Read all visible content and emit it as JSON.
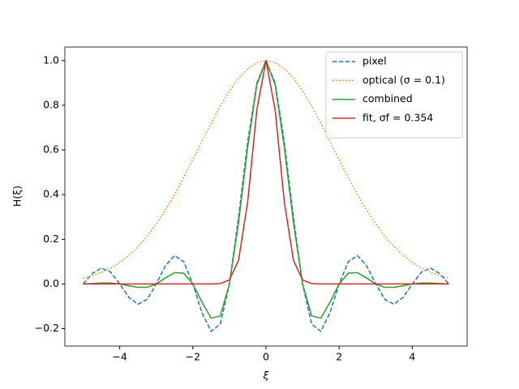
{
  "chart_data": {
    "type": "line",
    "xlabel": "ξ",
    "ylabel": "H(ξ)",
    "x": [
      -5,
      -4.75,
      -4.5,
      -4.25,
      -4,
      -3.75,
      -3.5,
      -3.25,
      -3,
      -2.75,
      -2.5,
      -2.25,
      -2,
      -1.75,
      -1.5,
      -1.25,
      -1,
      -0.75,
      -0.5,
      -0.25,
      0,
      0.25,
      0.5,
      0.75,
      1,
      1.25,
      1.5,
      1.75,
      2,
      2.25,
      2.5,
      2.75,
      3,
      3.25,
      3.5,
      3.75,
      4,
      4.25,
      4.5,
      4.75,
      5
    ],
    "series": [
      {
        "name": "pixel",
        "color": "#1f77b4",
        "linestyle": "dashed",
        "values": [
          0,
          0.047,
          0.071,
          0.053,
          0,
          -0.06,
          -0.091,
          -0.069,
          0,
          0.082,
          0.127,
          0.1,
          0,
          -0.129,
          -0.212,
          -0.18,
          0,
          0.3,
          0.637,
          0.9,
          1,
          0.9,
          0.637,
          0.3,
          0,
          -0.18,
          -0.212,
          -0.129,
          0,
          0.1,
          0.127,
          0.082,
          0,
          -0.069,
          -0.091,
          -0.06,
          0,
          0.053,
          0.071,
          0.047,
          0
        ]
      },
      {
        "name": "optical (σ =  0.1)",
        "color": "#ff7f0e",
        "linestyle": "dotted",
        "values": [
          0.026,
          0.037,
          0.052,
          0.071,
          0.097,
          0.128,
          0.167,
          0.214,
          0.269,
          0.331,
          0.401,
          0.477,
          0.557,
          0.639,
          0.72,
          0.796,
          0.864,
          0.921,
          0.964,
          0.991,
          1,
          0.991,
          0.964,
          0.921,
          0.864,
          0.796,
          0.72,
          0.639,
          0.557,
          0.477,
          0.401,
          0.331,
          0.269,
          0.214,
          0.167,
          0.128,
          0.097,
          0.071,
          0.052,
          0.037,
          0.026
        ]
      },
      {
        "name": "combined",
        "color": "#2ca02c",
        "linestyle": "solid",
        "values": [
          0,
          0.002,
          0.004,
          0.004,
          0,
          -0.008,
          -0.015,
          -0.015,
          0,
          0.027,
          0.051,
          0.048,
          0,
          -0.082,
          -0.153,
          -0.143,
          0,
          0.276,
          0.614,
          0.892,
          1,
          0.892,
          0.614,
          0.276,
          0,
          -0.143,
          -0.153,
          -0.082,
          0,
          0.048,
          0.051,
          0.027,
          0,
          -0.015,
          -0.015,
          -0.008,
          0,
          0.004,
          0.004,
          0.002,
          0
        ]
      },
      {
        "name": "fit, σf =  0.354",
        "color": "#d62728",
        "linestyle": "solid",
        "values": [
          0,
          0,
          0,
          0,
          0,
          0,
          0,
          0,
          0,
          0,
          0,
          0,
          0,
          0,
          0,
          0.002,
          0.018,
          0.106,
          0.369,
          0.779,
          1,
          0.779,
          0.369,
          0.106,
          0.018,
          0.002,
          0,
          0,
          0,
          0,
          0,
          0,
          0,
          0,
          0,
          0,
          0,
          0,
          0,
          0,
          0
        ]
      }
    ],
    "xlim": [
      -5.5,
      5.5
    ],
    "xticks": [
      {
        "value": -4,
        "label": "−4"
      },
      {
        "value": -2,
        "label": "−2"
      },
      {
        "value": 0,
        "label": "0"
      },
      {
        "value": 2,
        "label": "2"
      },
      {
        "value": 4,
        "label": "4"
      }
    ],
    "ylim": [
      -0.278,
      1.061
    ],
    "yticks": [
      {
        "value": -0.2,
        "label": "−0.2"
      },
      {
        "value": 0,
        "label": "0.0"
      },
      {
        "value": 0.2,
        "label": "0.2"
      },
      {
        "value": 0.4,
        "label": "0.4"
      },
      {
        "value": 0.6,
        "label": "0.6"
      },
      {
        "value": 0.8,
        "label": "0.8"
      },
      {
        "value": 1,
        "label": "1.0"
      }
    ],
    "grid": false,
    "legend": "upper right"
  }
}
